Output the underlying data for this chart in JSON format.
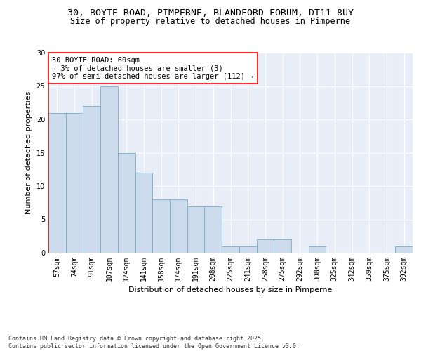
{
  "title_line1": "30, BOYTE ROAD, PIMPERNE, BLANDFORD FORUM, DT11 8UY",
  "title_line2": "Size of property relative to detached houses in Pimperne",
  "xlabel": "Distribution of detached houses by size in Pimperne",
  "ylabel": "Number of detached properties",
  "bar_color": "#ccdcec",
  "bar_edgecolor": "#7aaac8",
  "background_color": "#e8eef8",
  "categories": [
    "57sqm",
    "74sqm",
    "91sqm",
    "107sqm",
    "124sqm",
    "141sqm",
    "158sqm",
    "174sqm",
    "191sqm",
    "208sqm",
    "225sqm",
    "241sqm",
    "258sqm",
    "275sqm",
    "292sqm",
    "308sqm",
    "325sqm",
    "342sqm",
    "359sqm",
    "375sqm",
    "392sqm"
  ],
  "values": [
    21,
    21,
    22,
    25,
    15,
    12,
    8,
    8,
    7,
    7,
    1,
    1,
    2,
    2,
    0,
    1,
    0,
    0,
    0,
    0,
    1
  ],
  "annotation_text": "30 BOYTE ROAD: 60sqm\n← 3% of detached houses are smaller (3)\n97% of semi-detached houses are larger (112) →",
  "annotation_box_color": "white",
  "annotation_box_edgecolor": "red",
  "red_line_x": 0.0,
  "ylim": [
    0,
    30
  ],
  "yticks": [
    0,
    5,
    10,
    15,
    20,
    25,
    30
  ],
  "footnote": "Contains HM Land Registry data © Crown copyright and database right 2025.\nContains public sector information licensed under the Open Government Licence v3.0.",
  "title_fontsize": 9.5,
  "subtitle_fontsize": 8.5,
  "axis_label_fontsize": 8,
  "tick_fontsize": 7,
  "annotation_fontsize": 7.5,
  "footnote_fontsize": 6
}
